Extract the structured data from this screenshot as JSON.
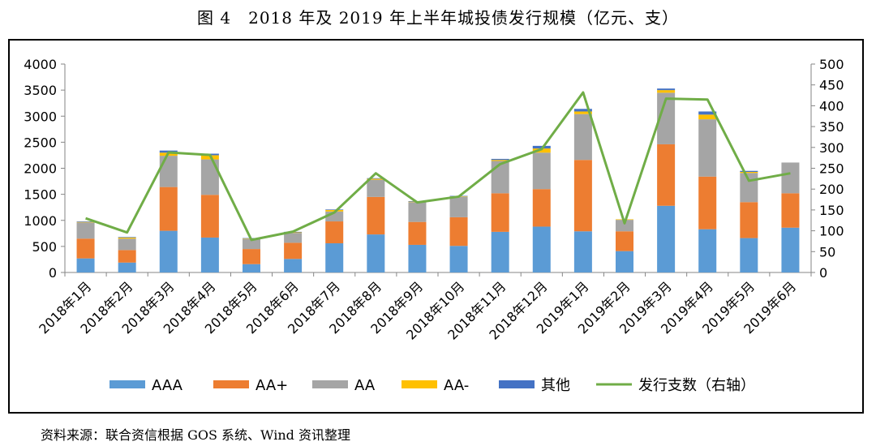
{
  "title": "图 4　2018 年及 2019 年上半年城投债发行规模（亿元、支）",
  "source": "资料来源：联合资信根据 GOS 系统、Wind 资讯整理",
  "colors": {
    "AAA": "#5B9BD5",
    "AA+": "#ED7D31",
    "AA": "#A5A5A5",
    "AA-": "#FFC000",
    "其他": "#4472C4",
    "line": "#70AD47"
  },
  "chart_data": {
    "type": "bar",
    "stacked": true,
    "title": "图 4　2018 年及 2019 年上半年城投债发行规模（亿元、支）",
    "categories": [
      "2018年1月",
      "2018年2月",
      "2018年3月",
      "2018年4月",
      "2018年5月",
      "2018年6月",
      "2018年7月",
      "2018年8月",
      "2018年9月",
      "2018年10月",
      "2018年11月",
      "2018年12月",
      "2019年1月",
      "2019年2月",
      "2019年3月",
      "2019年4月",
      "2019年5月",
      "2019年6月"
    ],
    "series": [
      {
        "name": "AAA",
        "type": "bar",
        "axis": "left",
        "color": "#5B9BD5",
        "values": [
          270,
          190,
          800,
          670,
          160,
          260,
          560,
          730,
          530,
          510,
          780,
          880,
          790,
          410,
          1280,
          830,
          660,
          860
        ]
      },
      {
        "name": "AA+",
        "type": "bar",
        "axis": "left",
        "color": "#ED7D31",
        "values": [
          380,
          240,
          840,
          820,
          290,
          310,
          420,
          720,
          440,
          550,
          740,
          720,
          1370,
          380,
          1180,
          1010,
          690,
          660
        ]
      },
      {
        "name": "AA",
        "type": "bar",
        "axis": "left",
        "color": "#A5A5A5",
        "values": [
          310,
          220,
          600,
          680,
          190,
          190,
          190,
          330,
          380,
          390,
          620,
          700,
          880,
          220,
          990,
          1100,
          560,
          590
        ]
      },
      {
        "name": "AA-",
        "type": "bar",
        "axis": "left",
        "color": "#FFC000",
        "values": [
          10,
          20,
          60,
          80,
          10,
          10,
          30,
          20,
          10,
          10,
          20,
          80,
          50,
          10,
          50,
          90,
          20,
          0
        ]
      },
      {
        "name": "其他",
        "type": "bar",
        "axis": "left",
        "color": "#4472C4",
        "values": [
          10,
          10,
          40,
          30,
          10,
          10,
          10,
          10,
          10,
          10,
          20,
          50,
          50,
          0,
          30,
          60,
          20,
          0
        ]
      },
      {
        "name": "发行支数（右轴）",
        "type": "line",
        "axis": "right",
        "color": "#70AD47",
        "values": [
          130,
          96,
          288,
          282,
          78,
          98,
          144,
          238,
          168,
          182,
          260,
          296,
          432,
          118,
          417,
          415,
          220,
          238
        ]
      }
    ],
    "y_left": {
      "min": 0,
      "max": 4000,
      "ticks": [
        0,
        500,
        1000,
        1500,
        2000,
        2500,
        3000,
        3500,
        4000
      ]
    },
    "y_right": {
      "min": 0,
      "max": 500,
      "ticks": [
        0,
        50,
        100,
        150,
        200,
        250,
        300,
        350,
        400,
        450,
        500
      ]
    },
    "grid": false,
    "legend": "bottom",
    "legend_labels": [
      "AAA",
      "AA+",
      "AA",
      "AA-",
      "其他",
      "发行支数（右轴）"
    ]
  }
}
